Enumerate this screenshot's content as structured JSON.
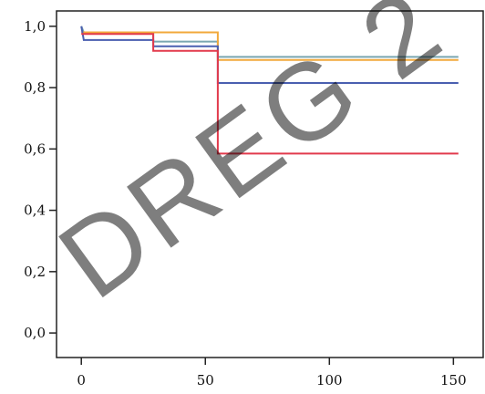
{
  "chart_data": {
    "type": "line",
    "step": true,
    "xlim": [
      -10,
      162
    ],
    "ylim": [
      -0.08,
      1.05
    ],
    "x_ticks": [
      0,
      50,
      100,
      150
    ],
    "x_tick_labels": [
      "0",
      "50",
      "100",
      "150"
    ],
    "y_ticks": [
      0.0,
      0.2,
      0.4,
      0.6,
      0.8,
      1.0
    ],
    "y_tick_labels": [
      "0,0",
      "0,2",
      "0,4",
      "0,6",
      "0,8",
      "1,0"
    ],
    "grid": false,
    "legend": "none",
    "series": [
      {
        "color": "#7aa6b0",
        "points": [
          [
            0,
            1.0
          ],
          [
            1,
            0.98
          ],
          [
            29,
            0.98
          ],
          [
            29,
            0.95
          ],
          [
            55,
            0.95
          ],
          [
            55,
            0.9
          ],
          [
            152,
            0.9
          ]
        ]
      },
      {
        "color": "#f2a93b",
        "points": [
          [
            0,
            0.98
          ],
          [
            55,
            0.98
          ],
          [
            55,
            0.89
          ],
          [
            152,
            0.89
          ]
        ]
      },
      {
        "color": "#4a5fb0",
        "points": [
          [
            0,
            1.0
          ],
          [
            1,
            0.955
          ],
          [
            29,
            0.955
          ],
          [
            29,
            0.935
          ],
          [
            55,
            0.935
          ],
          [
            55,
            0.815
          ],
          [
            152,
            0.815
          ]
        ]
      },
      {
        "color": "#e23a4c",
        "points": [
          [
            0,
            0.975
          ],
          [
            29,
            0.975
          ],
          [
            29,
            0.92
          ],
          [
            55,
            0.92
          ],
          [
            55,
            0.585
          ],
          [
            152,
            0.585
          ]
        ]
      }
    ]
  },
  "watermark": {
    "text": "DREG 2",
    "color": "#000000"
  },
  "colors": {
    "axis": "#222222",
    "background": "#ffffff"
  }
}
